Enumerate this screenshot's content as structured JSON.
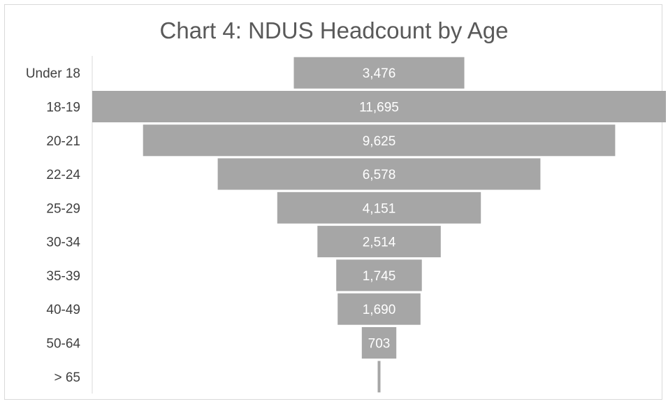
{
  "chart_data": {
    "type": "bar",
    "subtype": "funnel",
    "title": "Chart 4: NDUS Headcount by Age",
    "categories": [
      "Under 18",
      "18-19",
      "20-21",
      "22-24",
      "25-29",
      "30-34",
      "35-39",
      "40-49",
      "50-64",
      "> 65"
    ],
    "values": [
      3476,
      11695,
      9625,
      6578,
      4151,
      2514,
      1745,
      1690,
      703,
      40
    ],
    "value_labels": [
      "3,476",
      "11,695",
      "9,625",
      "6,578",
      "4,151",
      "2,514",
      "1,745",
      "1,690",
      "703",
      ""
    ],
    "xlabel": "",
    "ylabel": "",
    "grid": false,
    "legend": "none",
    "colors": {
      "bar": "#a6a6a6",
      "axis": "#d9d9d9",
      "title": "#595959",
      "category_text": "#404040",
      "value_text": "#ffffff"
    }
  }
}
